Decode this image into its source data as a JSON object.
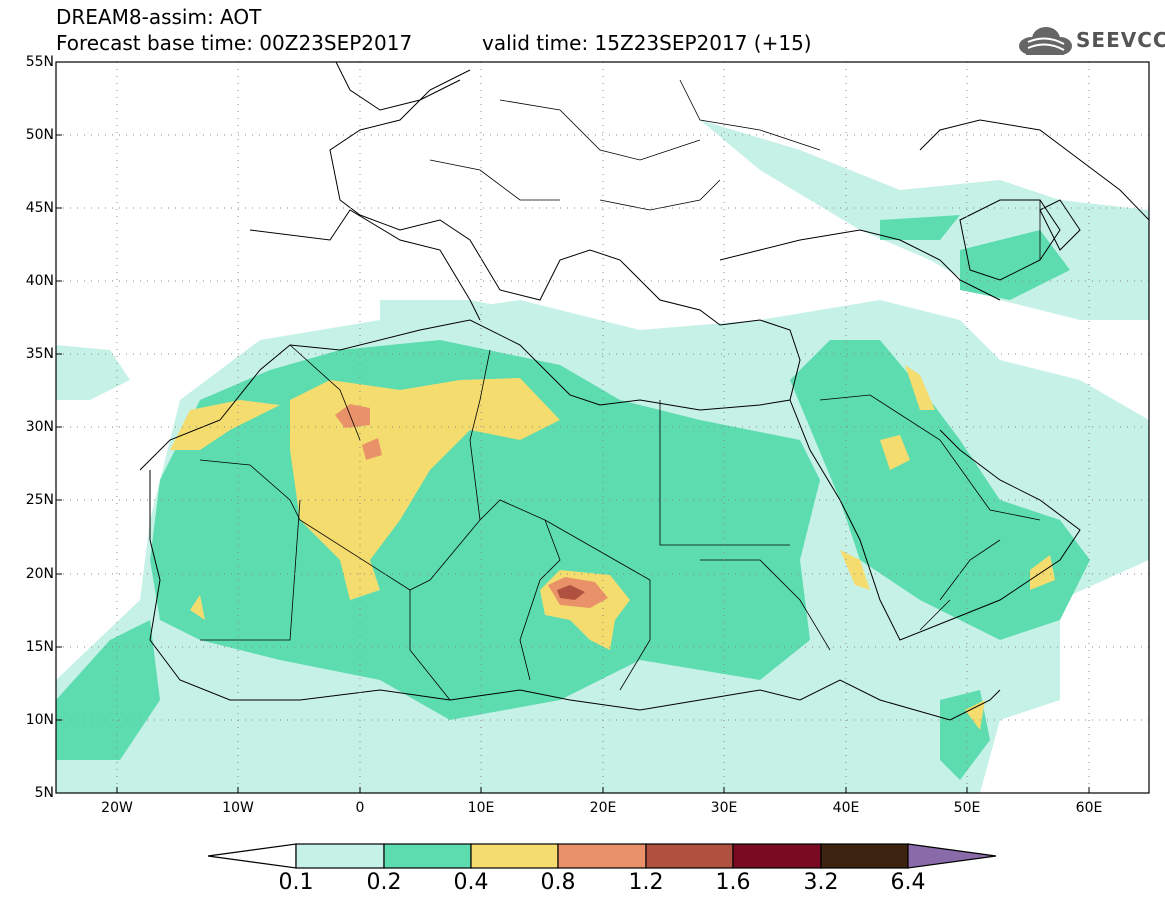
{
  "header": {
    "title_line1": "DREAM8-assim: AOT",
    "title_line2": "Forecast base time: 00Z23SEP2017",
    "valid_time": "valid time: 15Z23SEP2017 (+15)",
    "logo_text": "SEEVCCC"
  },
  "map": {
    "lon_range": [
      -25,
      65
    ],
    "lat_range": [
      5,
      55
    ],
    "lat_labels": [
      "55N",
      "50N",
      "45N",
      "40N",
      "35N",
      "30N",
      "25N",
      "20N",
      "15N",
      "10N",
      "5N"
    ],
    "lon_labels": [
      "20W",
      "10W",
      "0",
      "10E",
      "20E",
      "30E",
      "40E",
      "50E",
      "60E"
    ],
    "gridlines": true
  },
  "colorbar": {
    "labels": [
      "0.1",
      "0.2",
      "0.4",
      "0.8",
      "1.2",
      "1.6",
      "3.2",
      "6.4"
    ],
    "colors": [
      "#ffffff",
      "#c6f1e6",
      "#5ddcb0",
      "#f5dc6e",
      "#e9926a",
      "#b0503e",
      "#7a0a22",
      "#3d2410",
      "#8a6aa8"
    ]
  }
}
